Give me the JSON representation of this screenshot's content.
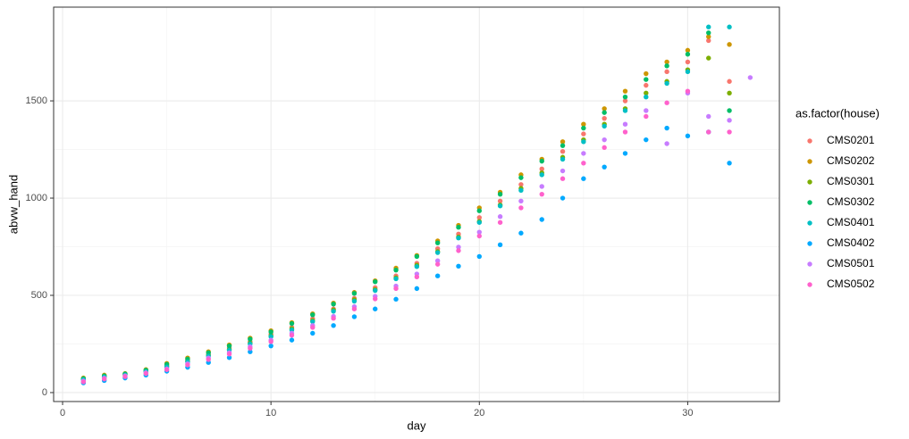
{
  "chart_data": {
    "type": "scatter",
    "x_label": "day",
    "y_label": "abvw_hand",
    "legend_title": "as.factor(house)",
    "legend_position": "right",
    "grid": true,
    "xlim": [
      -0.43,
      34.4
    ],
    "ylim": [
      -46,
      1982
    ],
    "xticks": [
      0,
      10,
      20,
      30
    ],
    "yticks": [
      0,
      500,
      1000,
      1500
    ],
    "series": [
      {
        "name": "CMS0201",
        "color": "#F8766D",
        "x": [
          1,
          2,
          3,
          4,
          5,
          6,
          7,
          8,
          9,
          10,
          11,
          12,
          13,
          14,
          15,
          16,
          17,
          18,
          19,
          20,
          21,
          22,
          23,
          24,
          25,
          26,
          27,
          28,
          29,
          30,
          31,
          32
        ],
        "values": [
          70,
          88,
          95,
          112,
          140,
          165,
          195,
          230,
          262,
          300,
          335,
          380,
          430,
          485,
          540,
          600,
          665,
          740,
          815,
          900,
          985,
          1070,
          1150,
          1240,
          1330,
          1410,
          1500,
          1580,
          1650,
          1700,
          1810,
          1600
        ]
      },
      {
        "name": "CMS0202",
        "color": "#CD9600",
        "x": [
          1,
          2,
          3,
          4,
          5,
          6,
          7,
          8,
          9,
          10,
          11,
          12,
          13,
          14,
          15,
          16,
          17,
          18,
          19,
          20,
          21,
          22,
          23,
          24,
          25,
          26,
          27,
          28,
          29,
          30,
          31,
          32
        ],
        "values": [
          75,
          90,
          98,
          118,
          150,
          178,
          210,
          245,
          280,
          318,
          360,
          405,
          460,
          515,
          575,
          640,
          705,
          780,
          860,
          950,
          1030,
          1120,
          1200,
          1290,
          1380,
          1460,
          1550,
          1640,
          1700,
          1760,
          1830,
          1790
        ]
      },
      {
        "name": "CMS0301",
        "color": "#7CAE00",
        "x": [
          1,
          2,
          3,
          4,
          5,
          6,
          7,
          8,
          9,
          10,
          11,
          12,
          13,
          14,
          15,
          16,
          17,
          18,
          19,
          20,
          21,
          22,
          23,
          24,
          25,
          26,
          27,
          28,
          29,
          30,
          31,
          32
        ],
        "values": [
          68,
          82,
          92,
          110,
          135,
          160,
          192,
          222,
          255,
          292,
          328,
          370,
          425,
          478,
          530,
          590,
          655,
          725,
          800,
          880,
          965,
          1050,
          1130,
          1210,
          1300,
          1380,
          1460,
          1540,
          1600,
          1660,
          1720,
          1540
        ]
      },
      {
        "name": "CMS0302",
        "color": "#00BE67",
        "x": [
          1,
          2,
          3,
          4,
          5,
          6,
          7,
          8,
          9,
          10,
          11,
          12,
          13,
          14,
          15,
          16,
          17,
          18,
          19,
          20,
          21,
          22,
          23,
          24,
          25,
          26,
          27,
          28,
          29,
          30,
          31,
          32
        ],
        "values": [
          72,
          86,
          96,
          115,
          145,
          172,
          205,
          240,
          275,
          312,
          355,
          400,
          455,
          510,
          570,
          630,
          700,
          770,
          850,
          935,
          1020,
          1105,
          1190,
          1270,
          1360,
          1440,
          1520,
          1610,
          1680,
          1740,
          1850,
          1450
        ]
      },
      {
        "name": "CMS0401",
        "color": "#00BFC4",
        "x": [
          1,
          2,
          3,
          4,
          5,
          6,
          7,
          8,
          9,
          10,
          11,
          12,
          13,
          14,
          15,
          16,
          17,
          18,
          19,
          20,
          21,
          22,
          23,
          24,
          25,
          26,
          27,
          28,
          29,
          30,
          31,
          32
        ],
        "values": [
          66,
          80,
          90,
          108,
          132,
          158,
          188,
          218,
          250,
          288,
          322,
          365,
          418,
          470,
          525,
          585,
          648,
          720,
          795,
          875,
          960,
          1040,
          1120,
          1200,
          1290,
          1370,
          1450,
          1520,
          1590,
          1650,
          1880,
          1880
        ]
      },
      {
        "name": "CMS0402",
        "color": "#00A9FF",
        "x": [
          1,
          2,
          3,
          4,
          5,
          6,
          7,
          8,
          9,
          10,
          11,
          12,
          13,
          14,
          15,
          16,
          17,
          18,
          19,
          20,
          21,
          22,
          23,
          24,
          25,
          26,
          27,
          28,
          29,
          30,
          31,
          32
        ],
        "values": [
          50,
          62,
          75,
          90,
          110,
          130,
          155,
          180,
          210,
          240,
          270,
          305,
          345,
          390,
          430,
          480,
          535,
          600,
          650,
          700,
          760,
          820,
          890,
          1000,
          1100,
          1160,
          1230,
          1300,
          1360,
          1320,
          1340,
          1180
        ]
      },
      {
        "name": "CMS0501",
        "color": "#C77CFF",
        "x": [
          1,
          2,
          3,
          4,
          5,
          6,
          7,
          8,
          9,
          10,
          11,
          12,
          13,
          14,
          15,
          16,
          17,
          18,
          19,
          20,
          21,
          22,
          23,
          24,
          25,
          26,
          27,
          28,
          29,
          30,
          31,
          32,
          33
        ],
        "values": [
          60,
          74,
          86,
          102,
          122,
          148,
          178,
          205,
          236,
          270,
          305,
          345,
          392,
          442,
          495,
          548,
          610,
          678,
          748,
          825,
          905,
          985,
          1060,
          1140,
          1230,
          1300,
          1380,
          1450,
          1280,
          1540,
          1420,
          1400,
          1620
        ]
      },
      {
        "name": "CMS0502",
        "color": "#FF61CC",
        "x": [
          1,
          2,
          3,
          4,
          5,
          6,
          7,
          8,
          9,
          10,
          11,
          12,
          13,
          14,
          15,
          16,
          17,
          18,
          19,
          20,
          21,
          22,
          23,
          24,
          25,
          26,
          27,
          28,
          29,
          30,
          31,
          32
        ],
        "values": [
          55,
          70,
          82,
          98,
          118,
          142,
          170,
          198,
          228,
          262,
          295,
          335,
          382,
          430,
          482,
          535,
          595,
          660,
          730,
          805,
          875,
          950,
          1020,
          1100,
          1180,
          1260,
          1340,
          1420,
          1490,
          1550,
          1340,
          1340
        ]
      }
    ]
  }
}
